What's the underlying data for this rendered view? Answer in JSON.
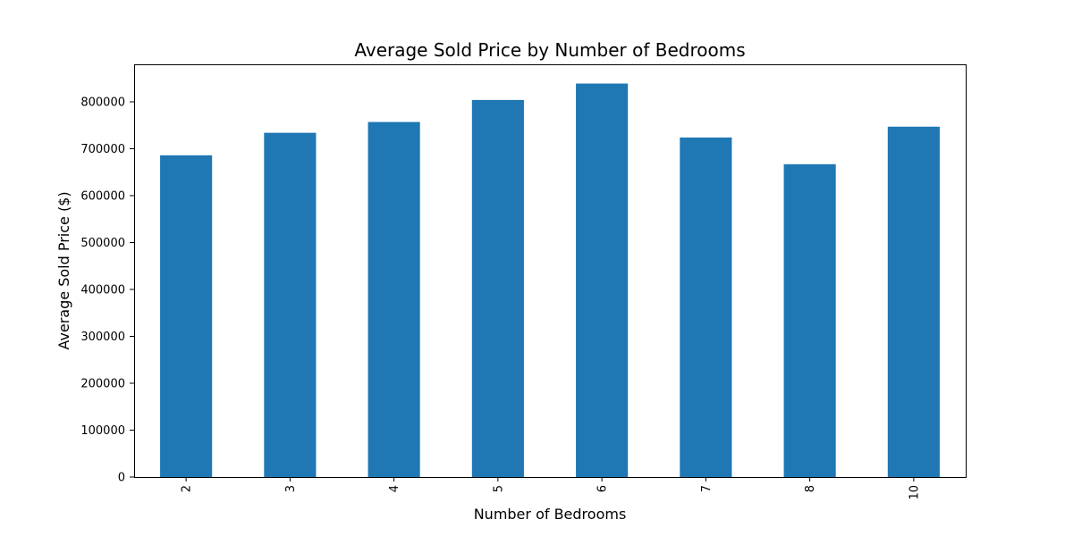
{
  "chart_data": {
    "type": "bar",
    "title": "Average Sold Price by Number of Bedrooms",
    "xlabel": "Number of Bedrooms",
    "ylabel": "Average Sold Price ($)",
    "categories": [
      "2",
      "3",
      "4",
      "5",
      "6",
      "7",
      "8",
      "10"
    ],
    "values": [
      686000,
      734000,
      757000,
      804000,
      839000,
      724000,
      667000,
      747000
    ],
    "ylim": [
      0,
      880000
    ],
    "yticks": [
      "0",
      "100000",
      "200000",
      "300000",
      "400000",
      "500000",
      "600000",
      "700000",
      "800000"
    ],
    "ytick_values": [
      0,
      100000,
      200000,
      300000,
      400000,
      500000,
      600000,
      700000,
      800000
    ],
    "xtick_rotation": "vertical",
    "grid": false,
    "legend": "none",
    "bar_color": "#1f77b4"
  }
}
